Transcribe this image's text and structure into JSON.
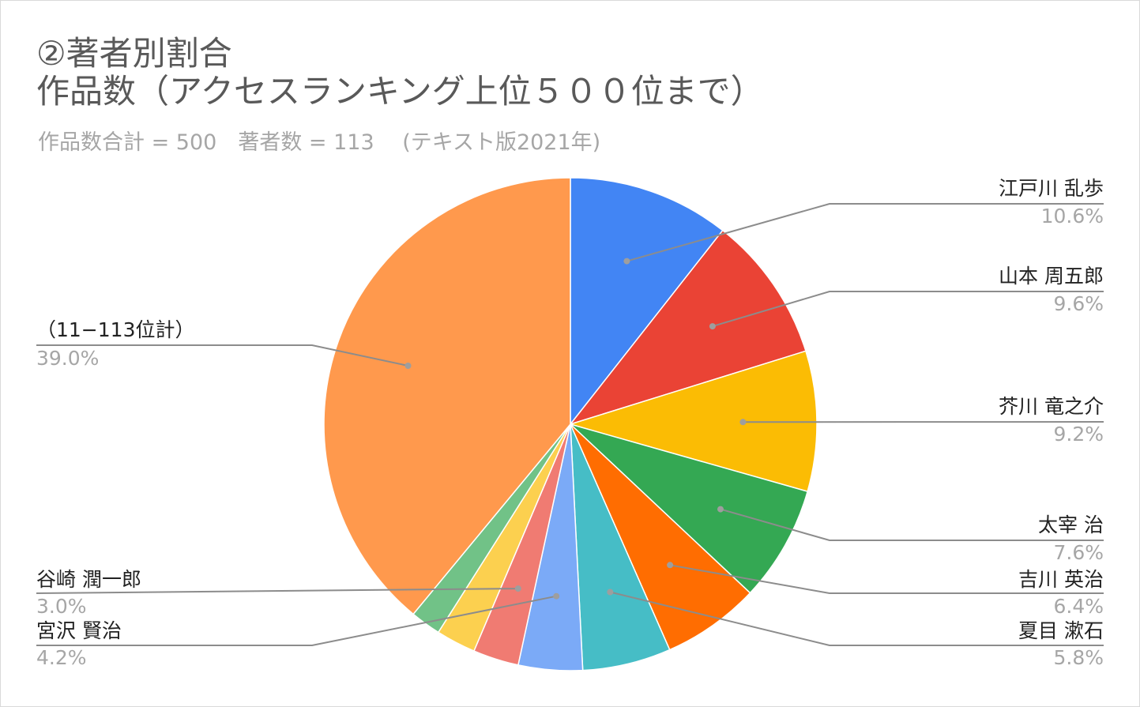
{
  "chart_data": {
    "type": "pie",
    "title_line1": "②著者別割合",
    "title_line2": "作品数（アクセスランキング上位５００位まで）",
    "subtitle": "作品数合計 = 500　著者数 = 113　 (テキスト版2021年)",
    "slices": [
      {
        "name": "江戸川 乱歩",
        "label": "10.6%",
        "value": 10.6,
        "color": "#4285f4"
      },
      {
        "name": "山本 周五郎",
        "label": "9.6%",
        "value": 9.6,
        "color": "#ea4335"
      },
      {
        "name": "芥川 竜之介",
        "label": "9.2%",
        "value": 9.2,
        "color": "#fbbc04"
      },
      {
        "name": "太宰 治",
        "label": "7.6%",
        "value": 7.6,
        "color": "#34a853"
      },
      {
        "name": "吉川 英治",
        "label": "6.4%",
        "value": 6.4,
        "color": "#ff6d01"
      },
      {
        "name": "夏目 漱石",
        "label": "5.8%",
        "value": 5.8,
        "color": "#46bdc6"
      },
      {
        "name": "宮沢 賢治",
        "label": "4.2%",
        "value": 4.2,
        "color": "#7baaf7"
      },
      {
        "name": "谷崎 潤一郎",
        "label": "3.0%",
        "value": 3.0,
        "color": "#f07b72"
      },
      {
        "name": "",
        "label": "",
        "value": 2.6,
        "color": "#fcd04f"
      },
      {
        "name": "",
        "label": "",
        "value": 2.0,
        "color": "#71c287"
      },
      {
        "name": "（11−113位計）",
        "label": "39.0%",
        "value": 39.0,
        "color": "#ff994d"
      }
    ]
  },
  "colors": {
    "title": "#595959",
    "subtitle": "#a6a6a6",
    "label_name": "#222222",
    "label_value": "#a6a6a6",
    "leader": "#8c8c8c"
  }
}
